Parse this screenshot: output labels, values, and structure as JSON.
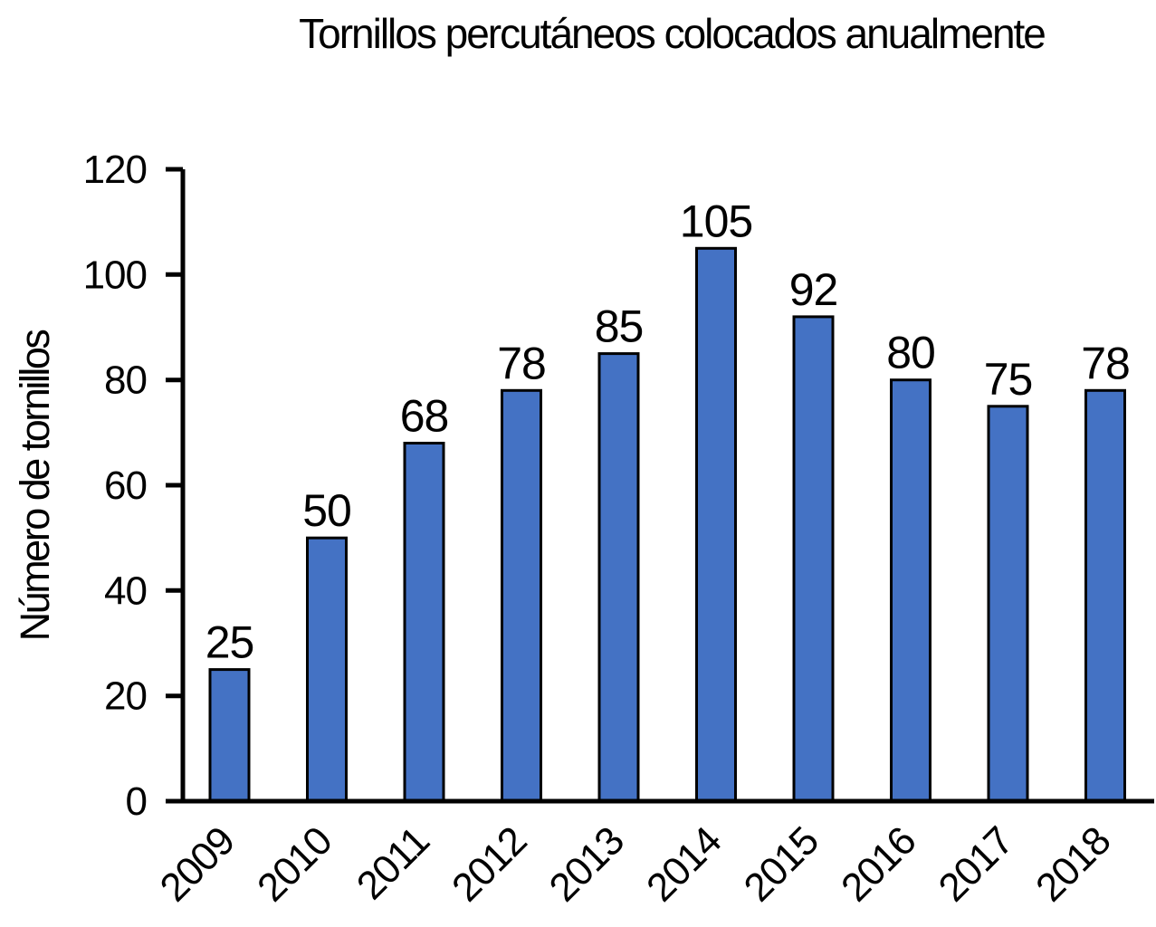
{
  "chart_data": {
    "type": "bar",
    "title": "Tornillos percutáneos colocados anualmente",
    "xlabel": "",
    "ylabel": "Número de tornillos",
    "categories": [
      "2009",
      "2010",
      "2011",
      "2012",
      "2013",
      "2014",
      "2015",
      "2016",
      "2017",
      "2018"
    ],
    "values": [
      25,
      50,
      68,
      78,
      85,
      105,
      92,
      80,
      75,
      78
    ],
    "value_labels": [
      "25",
      "50",
      "68",
      "78",
      "85",
      "105",
      "92",
      "80",
      "75",
      "78"
    ],
    "ylim": [
      0,
      120
    ],
    "yticks": [
      0,
      20,
      40,
      60,
      80,
      100,
      120
    ],
    "ytick_labels": [
      "0",
      "20",
      "40",
      "60",
      "80",
      "100",
      "120"
    ],
    "grid": false,
    "legend": "none",
    "x_tick_rotation": 45,
    "bar_color": "#4472C4",
    "bar_border_color": "#000000",
    "axis_color": "#000000",
    "text_color": "#000000",
    "background_color": "#ffffff"
  }
}
